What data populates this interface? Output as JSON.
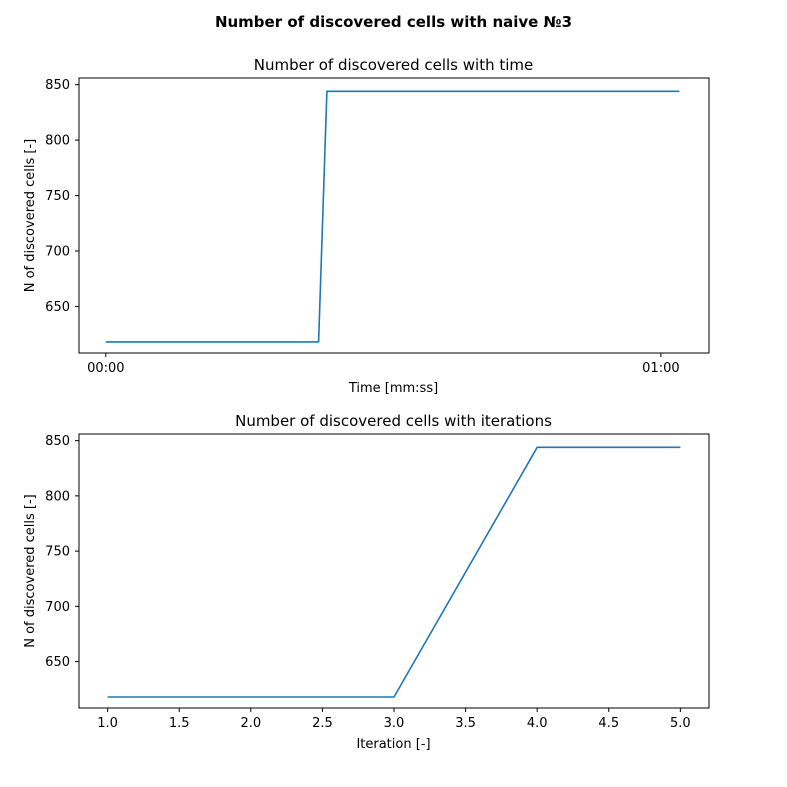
{
  "figure_title": "Number of discovered cells with naive №3",
  "chart_data": [
    {
      "type": "line",
      "title": "Number of discovered cells with time",
      "xlabel": "Time [mm:ss]",
      "ylabel": "N of discovered cells [-]",
      "x_unit": "seconds",
      "xlim": [
        -2.9,
        65.2
      ],
      "ylim": [
        608,
        856
      ],
      "xticks": [
        0,
        60
      ],
      "xtick_labels": [
        "00:00",
        "01:00"
      ],
      "yticks": [
        650,
        700,
        750,
        800,
        850
      ],
      "ytick_labels": [
        "650",
        "700",
        "750",
        "800",
        "850"
      ],
      "grid": false,
      "series": [
        {
          "color": "#1f77b4",
          "x": [
            0,
            23,
            23.9,
            62
          ],
          "y": [
            618,
            618,
            844,
            844
          ]
        }
      ]
    },
    {
      "type": "line",
      "title": "Number of discovered cells with iterations",
      "xlabel": "Iteration [-]",
      "ylabel": "N of discovered cells [-]",
      "xlim": [
        0.8,
        5.2
      ],
      "ylim": [
        608,
        856
      ],
      "xticks": [
        1.0,
        1.5,
        2.0,
        2.5,
        3.0,
        3.5,
        4.0,
        4.5,
        5.0
      ],
      "xtick_labels": [
        "1.0",
        "1.5",
        "2.0",
        "2.5",
        "3.0",
        "3.5",
        "4.0",
        "4.5",
        "5.0"
      ],
      "yticks": [
        650,
        700,
        750,
        800,
        850
      ],
      "ytick_labels": [
        "650",
        "700",
        "750",
        "800",
        "850"
      ],
      "grid": false,
      "series": [
        {
          "color": "#1f77b4",
          "x": [
            1,
            2,
            3,
            4,
            5
          ],
          "y": [
            618,
            618,
            618,
            844,
            844
          ]
        }
      ]
    }
  ]
}
